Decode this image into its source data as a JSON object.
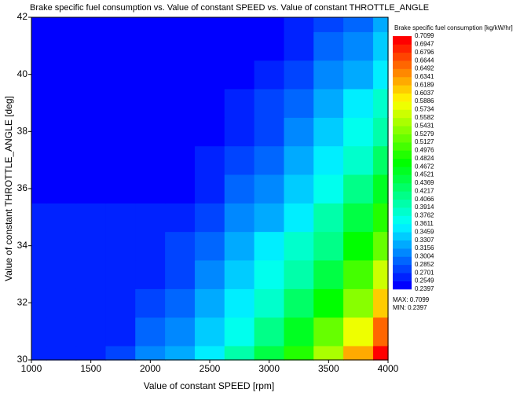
{
  "chart_data": {
    "type": "contour",
    "title": "Brake specific fuel consumption vs. Value of constant SPEED vs. Value of constant THROTTLE_ANGLE",
    "x_label": "Value of constant SPEED  [rpm]",
    "y_label": "Value of constant THROTTLE_ANGLE  [deg]",
    "colorbar_title": "Brake specific fuel consumption  [kg/kW/hr]",
    "max_label": "MAX: 0.7099",
    "min_label": "MIN: 0.2397",
    "colormap": "rainbow",
    "xlim": [
      1000,
      4000
    ],
    "ylim": [
      30,
      42
    ],
    "xticks": [
      1000,
      1500,
      2000,
      2500,
      3000,
      3500,
      4000
    ],
    "yticks": [
      30,
      32,
      34,
      36,
      38,
      40,
      42
    ],
    "levels": [
      0.7099,
      0.6947,
      0.6796,
      0.6644,
      0.6492,
      0.6341,
      0.6189,
      0.6037,
      0.5886,
      0.5734,
      0.5582,
      0.5431,
      0.5279,
      0.5127,
      0.4976,
      0.4824,
      0.4672,
      0.4521,
      0.4369,
      0.4217,
      0.4066,
      0.3914,
      0.3762,
      0.3611,
      0.3459,
      0.3307,
      0.3156,
      0.3004,
      0.2852,
      0.2701,
      0.2549,
      0.2397
    ],
    "x": [
      1000,
      1250,
      1500,
      1750,
      2000,
      2250,
      2500,
      2750,
      3000,
      3250,
      3500,
      3750,
      4000
    ],
    "y": [
      30,
      31,
      32,
      33,
      34,
      35,
      36,
      37,
      38,
      39,
      40,
      41,
      42
    ],
    "z": [
      [
        0.262,
        0.262,
        0.263,
        0.281,
        0.303,
        0.328,
        0.359,
        0.395,
        0.439,
        0.491,
        0.553,
        0.625,
        0.7099
      ],
      [
        0.262,
        0.262,
        0.262,
        0.27,
        0.289,
        0.312,
        0.339,
        0.372,
        0.412,
        0.459,
        0.514,
        0.58,
        0.66
      ],
      [
        0.262,
        0.262,
        0.262,
        0.262,
        0.277,
        0.298,
        0.323,
        0.353,
        0.387,
        0.43,
        0.48,
        0.54,
        0.61
      ],
      [
        0.262,
        0.262,
        0.262,
        0.262,
        0.266,
        0.285,
        0.307,
        0.334,
        0.366,
        0.403,
        0.449,
        0.502,
        0.566
      ],
      [
        0.262,
        0.262,
        0.262,
        0.262,
        0.262,
        0.273,
        0.294,
        0.318,
        0.346,
        0.379,
        0.421,
        0.469,
        0.527
      ],
      [
        0.262,
        0.262,
        0.262,
        0.262,
        0.262,
        0.263,
        0.281,
        0.303,
        0.328,
        0.359,
        0.395,
        0.439,
        0.491
      ],
      [
        0.245,
        0.245,
        0.245,
        0.245,
        0.245,
        0.253,
        0.27,
        0.289,
        0.312,
        0.339,
        0.372,
        0.412,
        0.459
      ],
      [
        0.245,
        0.245,
        0.245,
        0.245,
        0.245,
        0.245,
        0.26,
        0.277,
        0.298,
        0.323,
        0.353,
        0.387,
        0.43
      ],
      [
        0.245,
        0.245,
        0.245,
        0.245,
        0.245,
        0.245,
        0.25,
        0.266,
        0.285,
        0.307,
        0.334,
        0.366,
        0.403
      ],
      [
        0.245,
        0.245,
        0.245,
        0.245,
        0.245,
        0.245,
        0.245,
        0.256,
        0.273,
        0.294,
        0.318,
        0.346,
        0.379
      ],
      [
        0.245,
        0.245,
        0.245,
        0.245,
        0.245,
        0.245,
        0.245,
        0.248,
        0.263,
        0.281,
        0.303,
        0.328,
        0.359
      ],
      [
        0.245,
        0.245,
        0.245,
        0.245,
        0.245,
        0.245,
        0.245,
        0.245,
        0.253,
        0.27,
        0.289,
        0.312,
        0.339
      ],
      [
        0.245,
        0.245,
        0.245,
        0.245,
        0.245,
        0.245,
        0.245,
        0.245,
        0.245,
        0.26,
        0.277,
        0.298,
        0.323
      ]
    ]
  }
}
